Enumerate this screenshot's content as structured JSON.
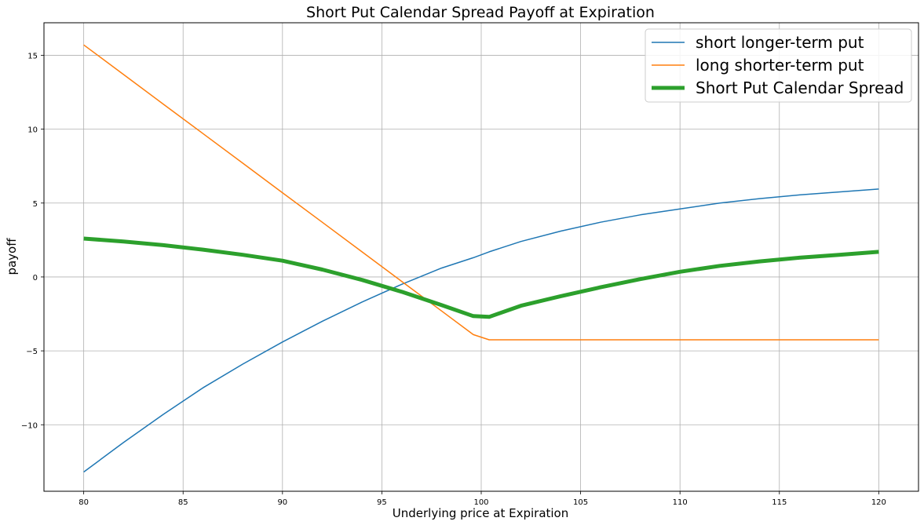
{
  "chart_data": {
    "type": "line",
    "title": "Short Put Calendar Spread Payoff at Expiration",
    "xlabel": "Underlying price at Expiration",
    "ylabel": "payoff",
    "xlim": [
      78,
      122
    ],
    "ylim": [
      -14.5,
      17.2
    ],
    "xticks": [
      80,
      85,
      90,
      95,
      100,
      105,
      110,
      115,
      120
    ],
    "xtick_labels": [
      "80",
      "85",
      "90",
      "95",
      "100",
      "105",
      "110",
      "115",
      "120"
    ],
    "yticks": [
      -10,
      -5,
      0,
      5,
      10,
      15
    ],
    "ytick_labels": [
      "−10",
      "−5",
      "0",
      "5",
      "10",
      "15"
    ],
    "grid": true,
    "legend_position": "top-right",
    "x": [
      80,
      82,
      84,
      86,
      88,
      90,
      92,
      94,
      96,
      98,
      99.6,
      100.4,
      102,
      104,
      106,
      108,
      110,
      112,
      114,
      116,
      118,
      120
    ],
    "series": [
      {
        "name": "short longer-term put",
        "color": "#1f77b4",
        "width": 1.5,
        "values": [
          -13.2,
          -11.2,
          -9.3,
          -7.5,
          -5.9,
          -4.4,
          -3.0,
          -1.7,
          -0.5,
          0.6,
          1.3,
          1.7,
          2.4,
          3.1,
          3.7,
          4.2,
          4.6,
          5.0,
          5.3,
          5.55,
          5.75,
          5.95
        ]
      },
      {
        "name": "long shorter-term put",
        "color": "#ff7f0e",
        "width": 1.5,
        "values": [
          15.7,
          13.7,
          11.7,
          9.7,
          7.7,
          5.7,
          3.7,
          1.7,
          -0.3,
          -2.3,
          -3.9,
          -4.25,
          -4.25,
          -4.25,
          -4.25,
          -4.25,
          -4.25,
          -4.25,
          -4.25,
          -4.25,
          -4.25,
          -4.25
        ]
      },
      {
        "name": "Short Put Calendar Spread",
        "color": "#2ca02c",
        "width": 5,
        "values": [
          2.6,
          2.4,
          2.15,
          1.85,
          1.5,
          1.1,
          0.5,
          -0.2,
          -1.0,
          -1.9,
          -2.65,
          -2.7,
          -1.95,
          -1.3,
          -0.7,
          -0.15,
          0.35,
          0.75,
          1.05,
          1.3,
          1.5,
          1.7
        ]
      }
    ]
  }
}
